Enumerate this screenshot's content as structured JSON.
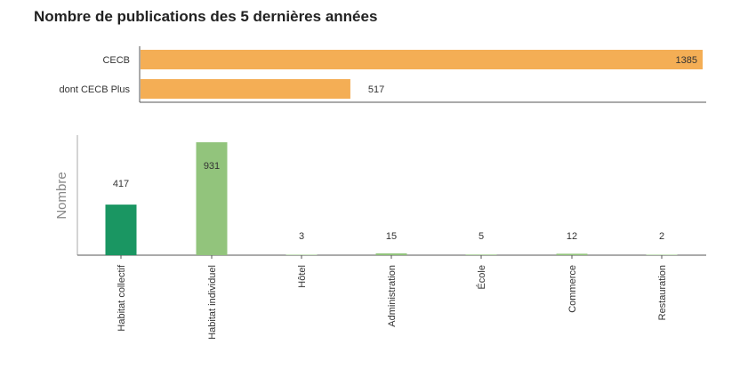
{
  "page": {
    "title": "Nombre de publications des 5 dernières années"
  },
  "colors": {
    "orange": "#F4AE55",
    "dark_green": "#1A9662",
    "light_green": "#92C47C",
    "axis": "#555555",
    "label": "#333333",
    "ylabel": "#888888"
  },
  "chart_data": [
    {
      "type": "bar",
      "orientation": "horizontal",
      "categories": [
        "CECB",
        "dont CECB Plus"
      ],
      "values": [
        1385,
        517
      ],
      "data_labels": [
        "1385",
        "517"
      ],
      "xlim": [
        0,
        1385
      ],
      "grid": false,
      "legend": "none"
    },
    {
      "type": "bar",
      "orientation": "vertical",
      "categories": [
        "Habitat collectif",
        "Habitat individuel",
        "Hôtel",
        "Administration",
        "École",
        "Commerce",
        "Restauration"
      ],
      "values": [
        417,
        931,
        3,
        15,
        5,
        12,
        2
      ],
      "data_labels": [
        "417",
        "931",
        "3",
        "15",
        "5",
        "12",
        "2"
      ],
      "ylabel": "Nombre",
      "ylim": [
        0,
        931
      ],
      "bar_colors": [
        "#1A9662",
        "#92C47C",
        "#92C47C",
        "#92C47C",
        "#92C47C",
        "#92C47C",
        "#92C47C"
      ],
      "grid": false,
      "legend": "none"
    }
  ]
}
